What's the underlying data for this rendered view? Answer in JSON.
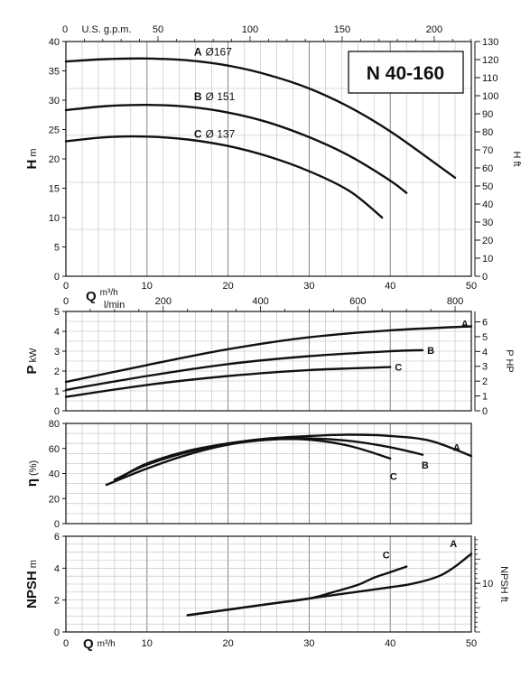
{
  "chart_data": [
    {
      "id": "head",
      "type": "line",
      "title": "N 40-160",
      "xlabel": "Q",
      "xunit": "m³/h",
      "ylabel": "H",
      "yunit": "m",
      "y2label": "H ft",
      "top_axis_label": "U.S. g.p.m.",
      "xlim": [
        0,
        50
      ],
      "ylim": [
        0,
        40
      ],
      "y2lim": [
        0,
        130
      ],
      "x_ticks": [
        "0",
        "10",
        "20",
        "30",
        "40",
        "50"
      ],
      "y_ticks": [
        "0",
        "5",
        "10",
        "15",
        "20",
        "25",
        "30",
        "35",
        "40"
      ],
      "y2_ticks": [
        "0",
        "10",
        "20",
        "30",
        "40",
        "50",
        "60",
        "70",
        "80",
        "90",
        "100",
        "110",
        "120",
        "130"
      ],
      "top_ticks": [
        "50",
        "100",
        "150",
        "200"
      ],
      "series": [
        {
          "name": "A",
          "label": "Ø167",
          "x": [
            0,
            5,
            10,
            15,
            20,
            25,
            30,
            35,
            40,
            45,
            48
          ],
          "y": [
            36.6,
            37.0,
            37.1,
            36.8,
            35.9,
            34.3,
            32.0,
            28.8,
            24.7,
            19.8,
            16.8
          ]
        },
        {
          "name": "B",
          "label": "Ø 151",
          "x": [
            0,
            5,
            10,
            15,
            20,
            25,
            30,
            35,
            40,
            42
          ],
          "y": [
            28.3,
            29.0,
            29.2,
            28.9,
            27.9,
            26.2,
            23.7,
            20.5,
            16.3,
            14.2
          ]
        },
        {
          "name": "C",
          "label": "Ø 137",
          "x": [
            0,
            5,
            10,
            15,
            20,
            25,
            30,
            35,
            39
          ],
          "y": [
            23.0,
            23.7,
            23.8,
            23.3,
            22.2,
            20.4,
            17.9,
            14.5,
            10.0
          ]
        }
      ]
    },
    {
      "id": "power",
      "type": "line",
      "top_axis_label": "l/min",
      "ylabel": "P",
      "yunit": "kW",
      "y2label": "P HP",
      "xlim": [
        0,
        50
      ],
      "ylim": [
        0,
        5
      ],
      "y2lim": [
        0,
        6.7
      ],
      "x_ticks": [
        "0",
        "10",
        "20",
        "30",
        "40",
        "50"
      ],
      "y_ticks": [
        "0",
        "1",
        "2",
        "3",
        "4",
        "5"
      ],
      "y2_ticks": [
        "0",
        "1",
        "2",
        "3",
        "4",
        "5",
        "6"
      ],
      "top_ticks": [
        "0",
        "200",
        "400",
        "600",
        "800"
      ],
      "series": [
        {
          "name": "A",
          "x": [
            0,
            10,
            20,
            30,
            40,
            50
          ],
          "y": [
            1.45,
            2.3,
            3.1,
            3.7,
            4.05,
            4.25
          ]
        },
        {
          "name": "B",
          "x": [
            0,
            10,
            20,
            30,
            40,
            44
          ],
          "y": [
            1.05,
            1.75,
            2.35,
            2.75,
            3.0,
            3.05
          ]
        },
        {
          "name": "C",
          "x": [
            0,
            10,
            20,
            30,
            40
          ],
          "y": [
            0.7,
            1.3,
            1.75,
            2.05,
            2.2
          ]
        }
      ]
    },
    {
      "id": "efficiency",
      "type": "line",
      "ylabel": "η",
      "yunit": "(%)",
      "xlim": [
        0,
        50
      ],
      "ylim": [
        0,
        80
      ],
      "x_ticks": [
        "0",
        "10",
        "20",
        "30",
        "40",
        "50"
      ],
      "y_ticks": [
        "0",
        "20",
        "40",
        "60",
        "80"
      ],
      "series": [
        {
          "name": "A",
          "x": [
            7,
            10,
            15,
            20,
            25,
            30,
            35,
            40,
            45,
            50
          ],
          "y": [
            38,
            48,
            58,
            64,
            68,
            70,
            71,
            70,
            66,
            54
          ]
        },
        {
          "name": "B",
          "x": [
            6,
            10,
            15,
            20,
            25,
            30,
            35,
            40,
            44
          ],
          "y": [
            35,
            47,
            57,
            64,
            67,
            68,
            66,
            61,
            55
          ]
        },
        {
          "name": "C",
          "x": [
            5,
            10,
            15,
            20,
            25,
            30,
            35,
            40
          ],
          "y": [
            31,
            44,
            55,
            63,
            67,
            67,
            62,
            52
          ]
        }
      ]
    },
    {
      "id": "npsh",
      "type": "line",
      "xlabel": "Q",
      "xunit": "m³/h",
      "ylabel": "NPSH",
      "yunit": "m",
      "y2label": "NPSH ft",
      "xlim": [
        0,
        50
      ],
      "ylim": [
        0,
        6
      ],
      "y2lim": [
        0,
        19.7
      ],
      "x_ticks": [
        "0",
        "10",
        "20",
        "30",
        "40",
        "50"
      ],
      "y_ticks": [
        "0",
        "2",
        "4",
        "6"
      ],
      "y2_ticks": [
        "10"
      ],
      "series": [
        {
          "name": "A",
          "x": [
            15,
            20,
            25,
            30,
            35,
            40,
            43,
            46,
            48,
            50
          ],
          "y": [
            1.05,
            1.4,
            1.75,
            2.1,
            2.45,
            2.8,
            3.05,
            3.5,
            4.1,
            4.9
          ]
        },
        {
          "name": "C",
          "x": [
            15,
            20,
            25,
            30,
            33,
            36,
            38,
            40,
            42
          ],
          "y": [
            1.05,
            1.4,
            1.75,
            2.1,
            2.5,
            2.95,
            3.4,
            3.75,
            4.1
          ]
        }
      ]
    }
  ]
}
